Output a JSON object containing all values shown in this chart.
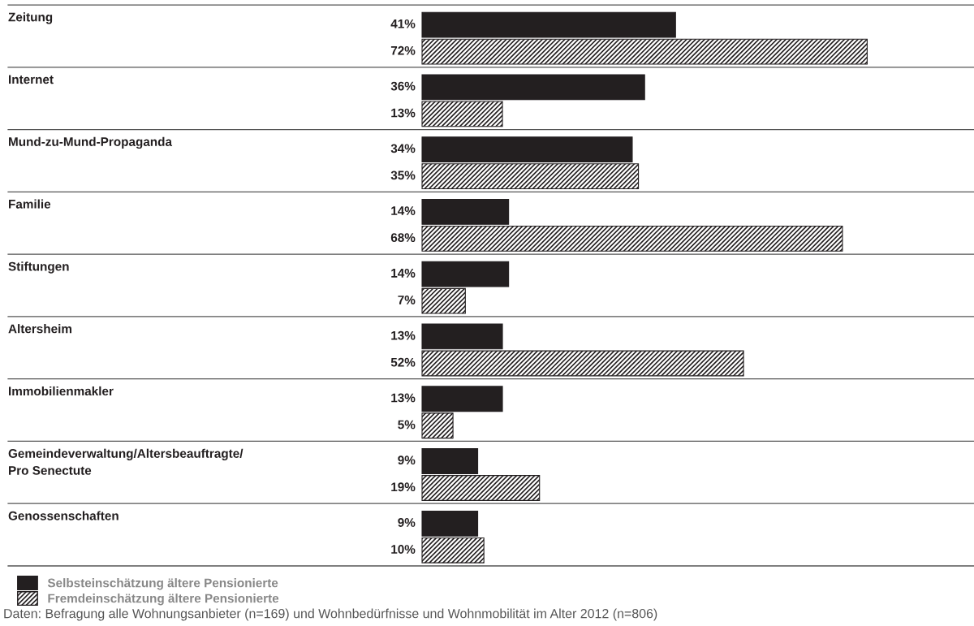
{
  "chart_data": {
    "type": "bar",
    "orientation": "horizontal",
    "relative": false,
    "legend": "bottom left",
    "categories": [
      "Zeitung",
      "Internet",
      "Mund-zu-Mund-Propaganda",
      "Familie",
      "Stiftungen",
      "Altersheim",
      "Immobilienmakler",
      "Gemeindeverwaltung/Altersbeauftragte/\nPro Senectute",
      "Genossenschaften"
    ],
    "series": [
      {
        "name": "Selbsteinschätzung ältere Pensionierte",
        "color": "#231f20",
        "values": [
          41,
          36,
          34,
          14,
          14,
          13,
          13,
          9,
          9
        ],
        "value_labels": [
          "41%",
          "36%",
          "34%",
          "14%",
          "14%",
          "13%",
          "13%",
          "9%",
          "9%"
        ]
      },
      {
        "name": "Fremdeinschätzung ältere Pensionierte",
        "color": "#231f20",
        "values": [
          72,
          13,
          35,
          68,
          7,
          52,
          5,
          19,
          10
        ],
        "value_labels": [
          "72%",
          "13%",
          "35%",
          "68%",
          "7%",
          "52%",
          "5%",
          "19%",
          "10%"
        ]
      }
    ],
    "annotations": [
      "Daten: Befragung alle Wohnungsanbieter (n=169) und Wohnbedürfnisse und Wohnmobilität im Alter 2012 (n=806)"
    ]
  }
}
